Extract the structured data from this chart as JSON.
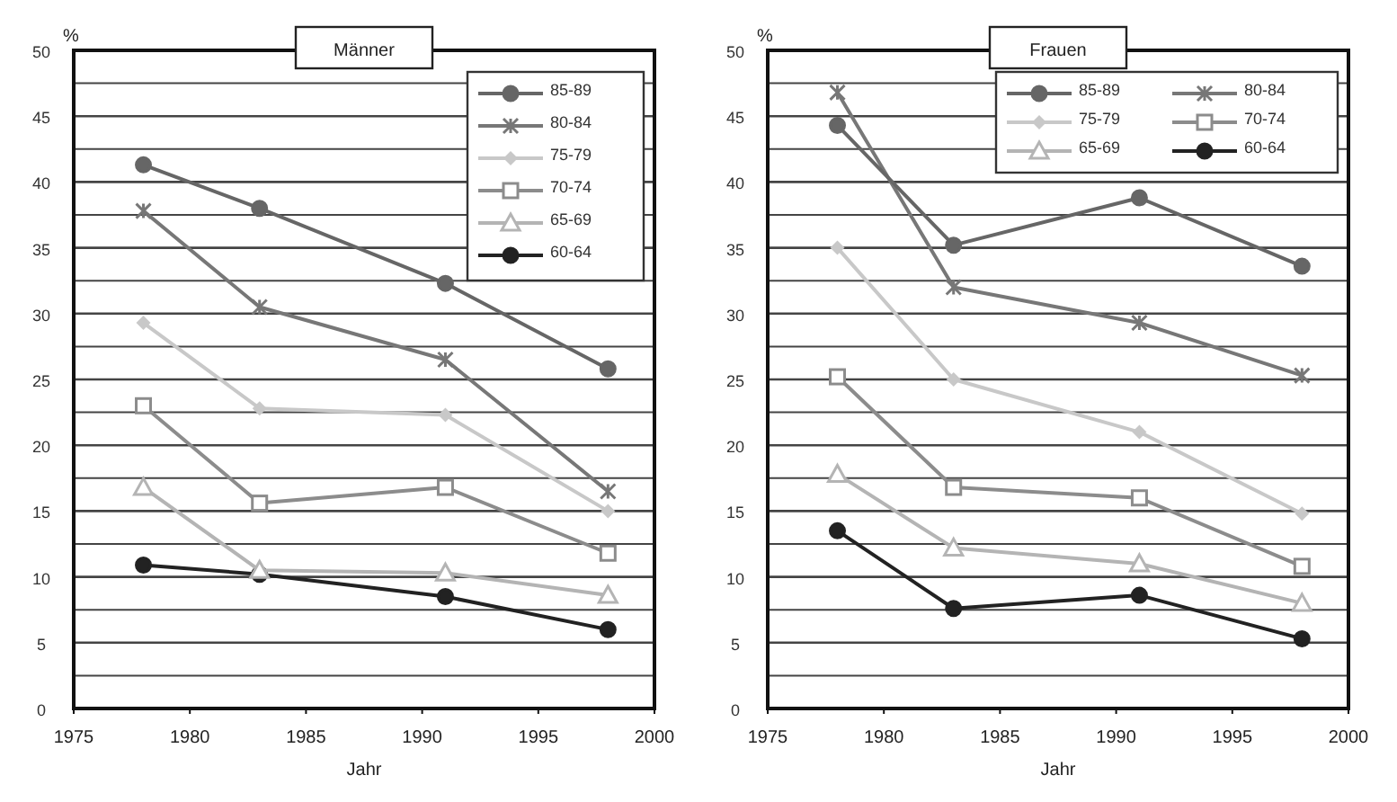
{
  "chart_data": [
    {
      "type": "line",
      "title": "Männer",
      "xlabel": "Jahr",
      "ylabel": "%",
      "x": [
        1978,
        1983,
        1991,
        1998
      ],
      "xlim": [
        1975,
        2000
      ],
      "xticks": [
        1975,
        1980,
        1985,
        1990,
        1995,
        2000
      ],
      "ylim": [
        0,
        50
      ],
      "yticks": [
        0,
        {
          "value": 2.5,
          "label": null
        },
        5,
        {
          "value": 7.5,
          "label": null
        },
        10,
        {
          "value": 12.5,
          "label": null
        },
        15,
        {
          "value": 17.5,
          "label": null
        },
        20,
        {
          "value": 22.5,
          "label": null
        },
        25,
        {
          "value": 27.5,
          "label": null
        },
        30,
        {
          "value": 32.5,
          "label": null
        },
        35,
        {
          "value": 37.5,
          "label": null
        },
        40,
        {
          "value": 42.5,
          "label": null
        },
        45,
        {
          "value": 47.5,
          "label": null
        },
        50
      ],
      "grid": "y",
      "legend": "top right",
      "series": [
        {
          "name": "85-89",
          "color": "#666666",
          "marker": "circle",
          "values": [
            41.3,
            38,
            32.3,
            25.8
          ]
        },
        {
          "name": "80-84",
          "color": "#777777",
          "marker": "cross",
          "values": [
            37.8,
            30.5,
            26.5,
            16.5
          ]
        },
        {
          "name": "75-79",
          "color": "#c8c8c8",
          "marker": "diamond",
          "values": [
            29.3,
            22.8,
            22.3,
            15
          ]
        },
        {
          "name": "70-74",
          "color": "#8c8c8c",
          "marker": "square",
          "values": [
            23,
            15.6,
            16.8,
            11.8
          ]
        },
        {
          "name": "65-69",
          "color": "#b4b4b4",
          "marker": "triangle",
          "values": [
            16.8,
            10.5,
            10.3,
            8.6
          ]
        },
        {
          "name": "60-64",
          "color": "#222222",
          "marker": "circle",
          "values": [
            10.9,
            10.2,
            8.5,
            6
          ]
        }
      ]
    },
    {
      "type": "line",
      "title": "Frauen",
      "xlabel": "Jahr",
      "ylabel": "%",
      "x": [
        1978,
        1983,
        1991,
        1998
      ],
      "xlim": [
        1975,
        2000
      ],
      "xticks": [
        1975,
        1980,
        1985,
        1990,
        1995,
        2000
      ],
      "ylim": [
        0,
        50
      ],
      "yticks": [
        0,
        {
          "value": 2.5,
          "label": null
        },
        5,
        {
          "value": 7.5,
          "label": null
        },
        10,
        {
          "value": 12.5,
          "label": null
        },
        15,
        {
          "value": 17.5,
          "label": null
        },
        20,
        {
          "value": 22.5,
          "label": null
        },
        25,
        {
          "value": 27.5,
          "label": null
        },
        30,
        {
          "value": 32.5,
          "label": null
        },
        35,
        {
          "value": 37.5,
          "label": null
        },
        40,
        {
          "value": 42.5,
          "label": null
        },
        45,
        {
          "value": 47.5,
          "label": null
        },
        50
      ],
      "grid": "y",
      "legend": "top right",
      "series": [
        {
          "name": "85-89",
          "color": "#666666",
          "marker": "circle",
          "values": [
            44.3,
            35.2,
            38.8,
            33.6
          ]
        },
        {
          "name": "80-84",
          "color": "#777777",
          "marker": "cross",
          "values": [
            46.8,
            32,
            29.3,
            25.3
          ]
        },
        {
          "name": "75-79",
          "color": "#c8c8c8",
          "marker": "diamond",
          "values": [
            35,
            25,
            21,
            14.8
          ]
        },
        {
          "name": "70-74",
          "color": "#8c8c8c",
          "marker": "square",
          "values": [
            25.2,
            16.8,
            16,
            10.8
          ]
        },
        {
          "name": "65-69",
          "color": "#b4b4b4",
          "marker": "triangle",
          "values": [
            17.8,
            12.2,
            11,
            8
          ]
        },
        {
          "name": "60-64",
          "color": "#222222",
          "marker": "circle",
          "values": [
            13.5,
            7.6,
            8.6,
            5.3
          ]
        }
      ]
    }
  ]
}
